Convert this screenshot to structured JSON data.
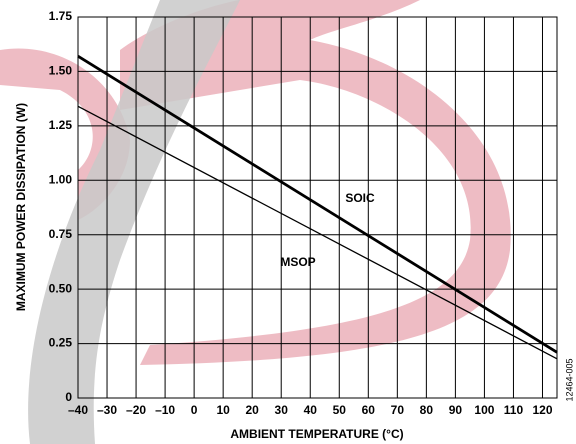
{
  "chart_data": {
    "type": "line",
    "x_label": "AMBIENT TEMPERATURE (°C)",
    "y_label": "MAXIMUM POWER DISSIPATION (W)",
    "figure_id": "12464-005",
    "x": [
      -40,
      125
    ],
    "series": [
      {
        "name": "SOIC",
        "color": "#000000",
        "values": [
          1.57,
          0.21
        ]
      },
      {
        "name": "MSOP",
        "color": "#000000",
        "values": [
          1.34,
          0.18
        ]
      }
    ],
    "xlim": [
      -40,
      125
    ],
    "ylim": [
      0,
      1.75
    ],
    "xticks": [
      {
        "value": -40,
        "label": "–40"
      },
      {
        "value": -30,
        "label": "–30"
      },
      {
        "value": -20,
        "label": "–20"
      },
      {
        "value": -10,
        "label": "–10"
      },
      0,
      10,
      20,
      30,
      40,
      50,
      60,
      70,
      80,
      90,
      100,
      110,
      120
    ],
    "yticks": [
      0,
      0.25,
      {
        "value": 0.5,
        "label": "0.50"
      },
      0.75,
      {
        "value": 1,
        "label": "1.00"
      },
      1.25,
      {
        "value": 1.5,
        "label": "1.50"
      },
      1.75
    ],
    "grid": true
  }
}
